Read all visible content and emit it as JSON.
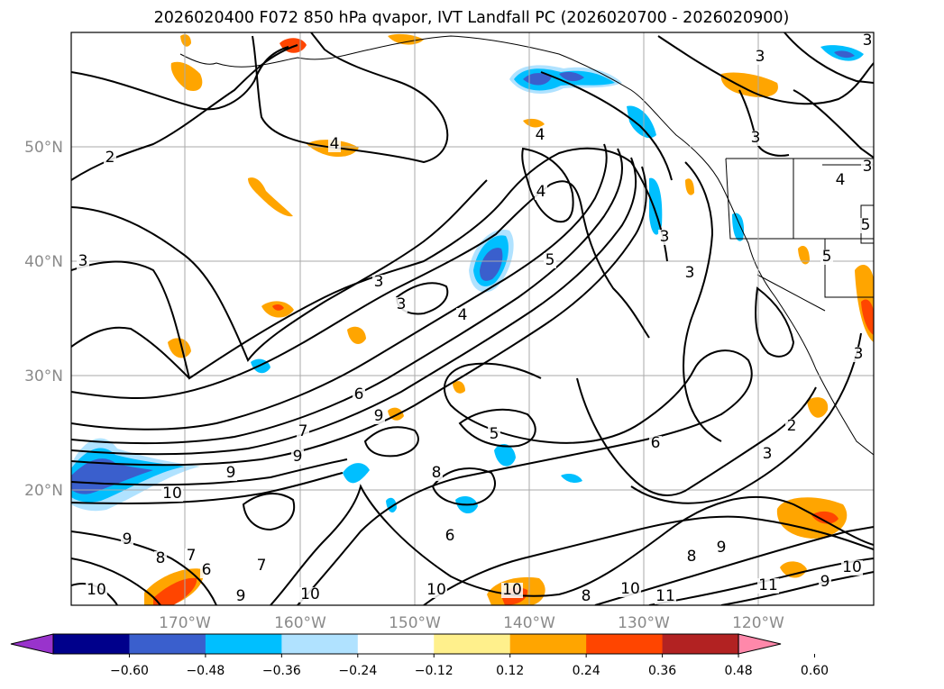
{
  "title": "2026020400 F072 850 hPa qvapor, IVT Landfall PC (2026020700 - 2026020900)",
  "map": {
    "lat_labels": [
      "50°N",
      "40°N",
      "30°N",
      "20°N"
    ],
    "lon_labels": [
      "170°W",
      "160°W",
      "150°W",
      "140°W",
      "130°W",
      "120°W"
    ],
    "gridlines": true,
    "tick_label_color": "#8a8a8a"
  },
  "colorbar": {
    "colors": [
      "#9933cc",
      "#00008b",
      "#3a5fcd",
      "#00bfff",
      "#b0e2ff",
      "#ffffff",
      "#fff08c",
      "#ffa500",
      "#ff4500",
      "#b22222",
      "#ff88aa"
    ],
    "ticks": [
      "−0.60",
      "−0.48",
      "−0.36",
      "−0.24",
      "−0.12",
      "0.12",
      "0.24",
      "0.36",
      "0.48",
      "0.60"
    ],
    "extend": "both"
  },
  "contour_labels": [
    {
      "t": "2"
    },
    {
      "t": "3"
    },
    {
      "t": "3"
    },
    {
      "t": "3"
    },
    {
      "t": "3"
    },
    {
      "t": "3"
    },
    {
      "t": "4"
    },
    {
      "t": "4"
    },
    {
      "t": "5"
    },
    {
      "t": "4"
    },
    {
      "t": "5"
    },
    {
      "t": "3"
    },
    {
      "t": "3"
    },
    {
      "t": "6"
    },
    {
      "t": "7"
    },
    {
      "t": "9"
    },
    {
      "t": "9"
    },
    {
      "t": "10"
    },
    {
      "t": "9"
    },
    {
      "t": "8"
    },
    {
      "t": "7"
    },
    {
      "t": "6"
    },
    {
      "t": "9"
    },
    {
      "t": "7"
    },
    {
      "t": "6"
    },
    {
      "t": "8"
    },
    {
      "t": "5"
    },
    {
      "t": "6"
    },
    {
      "t": "10"
    },
    {
      "t": "10"
    },
    {
      "t": "8"
    },
    {
      "t": "10"
    },
    {
      "t": "11"
    },
    {
      "t": "8"
    },
    {
      "t": "9"
    },
    {
      "t": "3"
    },
    {
      "t": "2"
    },
    {
      "t": "4"
    },
    {
      "t": "11"
    },
    {
      "t": "9"
    },
    {
      "t": "10"
    },
    {
      "t": "9"
    },
    {
      "t": "3"
    },
    {
      "t": "3"
    },
    {
      "t": "4"
    },
    {
      "t": "3"
    },
    {
      "t": "5"
    },
    {
      "t": "10"
    },
    {
      "t": "10"
    }
  ]
}
